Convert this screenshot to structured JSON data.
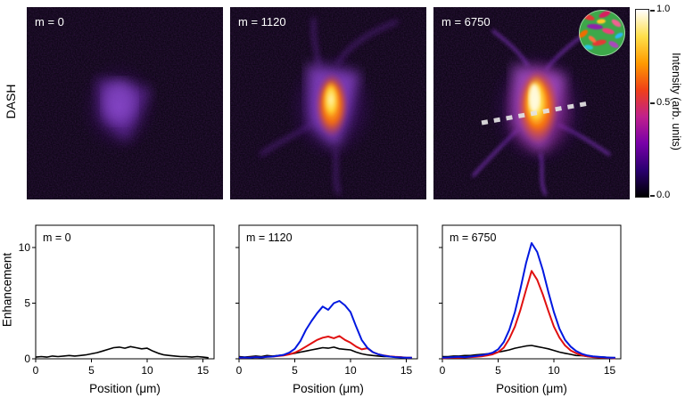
{
  "figure": {
    "dash_label": "DASH"
  },
  "panels": [
    {
      "label": "m = 0"
    },
    {
      "label": "m = 1120"
    },
    {
      "label": "m = 6750"
    }
  ],
  "colorbar": {
    "title": "Intensity (arb. units)",
    "ticks": [
      "1.0",
      "0.5",
      "0.0"
    ],
    "gradient": [
      "#000000",
      "#2a0070",
      "#7800a8",
      "#c0208c",
      "#f04018",
      "#ff9a00",
      "#ffdf4a",
      "#ffffff"
    ]
  },
  "chart_data": [
    {
      "type": "line",
      "title": "m = 0",
      "xlabel": "Position (μm)",
      "ylabel": "Enhancement",
      "xlim": [
        0,
        16
      ],
      "ylim": [
        0,
        12
      ],
      "xticks": [
        0,
        5,
        10,
        15
      ],
      "yticks": [
        0,
        5,
        10
      ],
      "show_ytick_labels": true,
      "x": [
        0,
        0.5,
        1,
        1.5,
        2,
        2.5,
        3,
        3.5,
        4,
        4.5,
        5,
        5.5,
        6,
        6.5,
        7,
        7.5,
        8,
        8.5,
        9,
        9.5,
        10,
        10.5,
        11,
        11.5,
        12,
        12.5,
        13,
        13.5,
        14,
        14.5,
        15,
        15.5
      ],
      "series": [
        {
          "name": "black",
          "color": "#000000",
          "values": [
            0.15,
            0.2,
            0.15,
            0.25,
            0.2,
            0.25,
            0.3,
            0.25,
            0.3,
            0.35,
            0.45,
            0.55,
            0.7,
            0.85,
            1.0,
            1.05,
            0.95,
            1.1,
            1.0,
            0.9,
            0.95,
            0.7,
            0.5,
            0.35,
            0.3,
            0.25,
            0.2,
            0.2,
            0.15,
            0.2,
            0.15,
            0.1
          ]
        }
      ]
    },
    {
      "type": "line",
      "title": "m = 1120",
      "xlabel": "Position (μm)",
      "ylabel": "Enhancement",
      "xlim": [
        0,
        16
      ],
      "ylim": [
        0,
        12
      ],
      "xticks": [
        0,
        5,
        10,
        15
      ],
      "yticks": [
        0,
        5,
        10
      ],
      "show_ytick_labels": false,
      "x": [
        0,
        0.5,
        1,
        1.5,
        2,
        2.5,
        3,
        3.5,
        4,
        4.5,
        5,
        5.5,
        6,
        6.5,
        7,
        7.5,
        8,
        8.5,
        9,
        9.5,
        10,
        10.5,
        11,
        11.5,
        12,
        12.5,
        13,
        13.5,
        14,
        14.5,
        15,
        15.5
      ],
      "series": [
        {
          "name": "black",
          "color": "#000000",
          "values": [
            0.2,
            0.15,
            0.2,
            0.25,
            0.2,
            0.3,
            0.25,
            0.3,
            0.35,
            0.4,
            0.5,
            0.6,
            0.7,
            0.8,
            0.9,
            1.0,
            0.95,
            1.05,
            0.9,
            0.85,
            0.8,
            0.6,
            0.45,
            0.35,
            0.3,
            0.25,
            0.2,
            0.2,
            0.15,
            0.15,
            0.1,
            0.1
          ]
        },
        {
          "name": "red",
          "color": "#e01010",
          "values": [
            0.1,
            0.1,
            0.12,
            0.15,
            0.12,
            0.18,
            0.2,
            0.25,
            0.3,
            0.4,
            0.55,
            0.8,
            1.1,
            1.4,
            1.7,
            1.9,
            2.0,
            1.85,
            2.05,
            1.7,
            1.45,
            1.1,
            0.85,
            0.95,
            0.6,
            0.4,
            0.3,
            0.22,
            0.18,
            0.15,
            0.1,
            0.1
          ]
        },
        {
          "name": "blue",
          "color": "#0018e0",
          "values": [
            0.1,
            0.12,
            0.1,
            0.15,
            0.12,
            0.18,
            0.2,
            0.28,
            0.35,
            0.55,
            0.9,
            1.6,
            2.6,
            3.4,
            4.1,
            4.7,
            4.4,
            5.0,
            5.2,
            4.8,
            4.2,
            2.9,
            1.7,
            1.0,
            0.6,
            0.4,
            0.28,
            0.2,
            0.15,
            0.12,
            0.1,
            0.1
          ]
        }
      ]
    },
    {
      "type": "line",
      "title": "m = 6750",
      "xlabel": "Position (μm)",
      "ylabel": "Enhancement",
      "xlim": [
        0,
        16
      ],
      "ylim": [
        0,
        12
      ],
      "xticks": [
        0,
        5,
        10,
        15
      ],
      "yticks": [
        0,
        5,
        10
      ],
      "show_ytick_labels": false,
      "x": [
        0,
        0.5,
        1,
        1.5,
        2,
        2.5,
        3,
        3.5,
        4,
        4.5,
        5,
        5.5,
        6,
        6.5,
        7,
        7.5,
        8,
        8.5,
        9,
        9.5,
        10,
        10.5,
        11,
        11.5,
        12,
        12.5,
        13,
        13.5,
        14,
        14.5,
        15,
        15.5
      ],
      "series": [
        {
          "name": "black",
          "color": "#000000",
          "values": [
            0.2,
            0.2,
            0.25,
            0.25,
            0.3,
            0.3,
            0.35,
            0.4,
            0.45,
            0.5,
            0.6,
            0.7,
            0.8,
            0.95,
            1.05,
            1.15,
            1.2,
            1.1,
            1.0,
            0.9,
            0.75,
            0.6,
            0.5,
            0.4,
            0.3,
            0.28,
            0.22,
            0.2,
            0.18,
            0.15,
            0.12,
            0.1
          ]
        },
        {
          "name": "red",
          "color": "#e01010",
          "values": [
            0.05,
            0.08,
            0.1,
            0.1,
            0.12,
            0.15,
            0.18,
            0.22,
            0.3,
            0.4,
            0.6,
            1.0,
            1.8,
            2.9,
            4.4,
            6.2,
            7.9,
            7.1,
            5.8,
            4.3,
            2.9,
            1.9,
            1.2,
            0.75,
            0.5,
            0.32,
            0.22,
            0.15,
            0.12,
            0.1,
            0.08,
            0.05
          ]
        },
        {
          "name": "blue",
          "color": "#0018e0",
          "values": [
            0.1,
            0.12,
            0.15,
            0.18,
            0.15,
            0.2,
            0.25,
            0.32,
            0.42,
            0.55,
            0.85,
            1.5,
            2.6,
            4.2,
            6.3,
            8.6,
            10.4,
            9.6,
            8.0,
            6.0,
            4.2,
            2.7,
            1.7,
            1.1,
            0.7,
            0.45,
            0.3,
            0.22,
            0.18,
            0.14,
            0.1,
            0.1
          ]
        }
      ]
    }
  ]
}
